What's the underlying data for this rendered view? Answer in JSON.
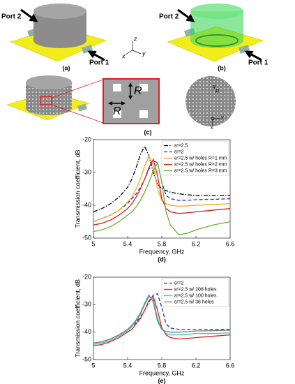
{
  "figure": {
    "panel_a": {
      "port2": "Port 2",
      "port1": "Port 1",
      "caption": "(a)",
      "axes": [
        "x",
        "y",
        "z"
      ]
    },
    "panel_b": {
      "port2": "Port 2",
      "port1": "Port 1",
      "caption": "(b)"
    },
    "panel_c": {
      "zoom_labels": [
        "R",
        "R"
      ],
      "circle_labels": [
        "g",
        "R",
        "x",
        "y"
      ],
      "caption": "(c)"
    }
  },
  "chart_data": [
    {
      "type": "line",
      "caption": "(d)",
      "xlabel": "Frequency, GHz",
      "ylabel": "Transmission coefficient, dB",
      "xlim": [
        5,
        6.6
      ],
      "xticks": [
        5,
        5.4,
        5.8,
        6.2,
        6.6
      ],
      "ylim": [
        -50,
        -20
      ],
      "yticks": [
        -50,
        -40,
        -30,
        -20
      ],
      "grid": false,
      "legend": "upper right",
      "x": [
        5,
        5.1,
        5.2,
        5.3,
        5.4,
        5.45,
        5.5,
        5.55,
        5.6,
        5.65,
        5.7,
        5.75,
        5.8,
        5.85,
        5.9,
        6.0,
        6.1,
        6.2,
        6.4,
        6.6
      ],
      "series": [
        {
          "name": "εr=2.5",
          "color": "#000000",
          "style": "dashdot",
          "values": [
            -42,
            -41,
            -39.5,
            -37.5,
            -34.5,
            -32,
            -28.5,
            -24.5,
            -22,
            -25,
            -30,
            -33.5,
            -35,
            -35.5,
            -36,
            -36.5,
            -36.8,
            -37,
            -37,
            -37
          ]
        },
        {
          "name": "εr=2",
          "color": "#1f2fd0",
          "style": "dashed",
          "values": [
            -45,
            -44,
            -43,
            -41.5,
            -39.5,
            -38,
            -36.5,
            -34.5,
            -32,
            -29,
            -26.5,
            -27,
            -33,
            -37,
            -38,
            -38.5,
            -38.5,
            -38.3,
            -38.2,
            -38
          ]
        },
        {
          "name": "εr=2.5 w/ holes R=1 mm",
          "color": "#f5a623",
          "style": "solid",
          "values": [
            -45,
            -44,
            -43,
            -41.5,
            -39,
            -37.5,
            -35,
            -32,
            -28,
            -25,
            -28,
            -35,
            -38.5,
            -39.5,
            -40,
            -40.3,
            -40.2,
            -40,
            -39.8,
            -39.5
          ]
        },
        {
          "name": "εr=2.5 w/ holes R=2 mm",
          "color": "#e0201b",
          "style": "solid",
          "values": [
            -46,
            -45.5,
            -44.5,
            -43,
            -41,
            -39.5,
            -37.5,
            -35,
            -32,
            -28.5,
            -26,
            -31,
            -38,
            -41,
            -42,
            -42.5,
            -42.3,
            -42,
            -41.5,
            -41
          ]
        },
        {
          "name": "εr=2.5 w/ holes R=3 mm",
          "color": "#6ab42a",
          "style": "solid",
          "values": [
            -48,
            -47.5,
            -46.5,
            -45,
            -43,
            -42,
            -40.5,
            -38.5,
            -36,
            -33,
            -29.5,
            -27,
            -33,
            -42,
            -46,
            -49,
            -48.5,
            -47.5,
            -46,
            -45
          ]
        }
      ]
    },
    {
      "type": "line",
      "caption": "(e)",
      "xlabel": "Frequency, GHz",
      "ylabel": "Transmission coefficient, dB",
      "xlim": [
        5,
        6.6
      ],
      "xticks": [
        5,
        5.4,
        5.8,
        6.2,
        6.6
      ],
      "ylim": [
        -50,
        -20
      ],
      "yticks": [
        -50,
        -40,
        -30,
        -20
      ],
      "grid": false,
      "legend": "upper right",
      "x": [
        5,
        5.1,
        5.2,
        5.3,
        5.4,
        5.45,
        5.5,
        5.55,
        5.6,
        5.65,
        5.7,
        5.75,
        5.8,
        5.85,
        5.9,
        6.0,
        6.1,
        6.2,
        6.4,
        6.6
      ],
      "series": [
        {
          "name": "εr=2",
          "color": "#1f2fd0",
          "style": "dashed",
          "values": [
            -44,
            -43.5,
            -42.5,
            -41,
            -39,
            -38,
            -36.5,
            -34.5,
            -32,
            -29,
            -26.5,
            -26,
            -31,
            -37,
            -38.5,
            -39,
            -39,
            -39,
            -39,
            -39
          ]
        },
        {
          "name": "εr=2.5 w/ 208 holes",
          "color": "#e0201b",
          "style": "solid",
          "values": [
            -45,
            -44.5,
            -43.5,
            -42,
            -40,
            -39,
            -37,
            -35,
            -32,
            -28.5,
            -27,
            -32,
            -38.5,
            -41,
            -42,
            -42.5,
            -42.3,
            -42,
            -41.5,
            -41
          ]
        },
        {
          "name": "εr=2.5 w/ 100 holes",
          "color": "#28c8c8",
          "style": "solid",
          "values": [
            -44.5,
            -44,
            -43,
            -41.5,
            -39.5,
            -38,
            -36,
            -33.5,
            -30,
            -27,
            -28,
            -35,
            -39,
            -40.5,
            -41,
            -41,
            -40.8,
            -40.5,
            -40.5,
            -40.3
          ]
        },
        {
          "name": "εr=2.5 w/ 36 holes",
          "color": "#7a7a7a",
          "style": "solid",
          "values": [
            -44,
            -43.5,
            -42.5,
            -41,
            -39,
            -37.5,
            -35.5,
            -33,
            -29.5,
            -26.5,
            -29,
            -36,
            -39,
            -39.8,
            -40,
            -40,
            -39.8,
            -39.6,
            -39.5,
            -39.3
          ]
        }
      ]
    }
  ]
}
